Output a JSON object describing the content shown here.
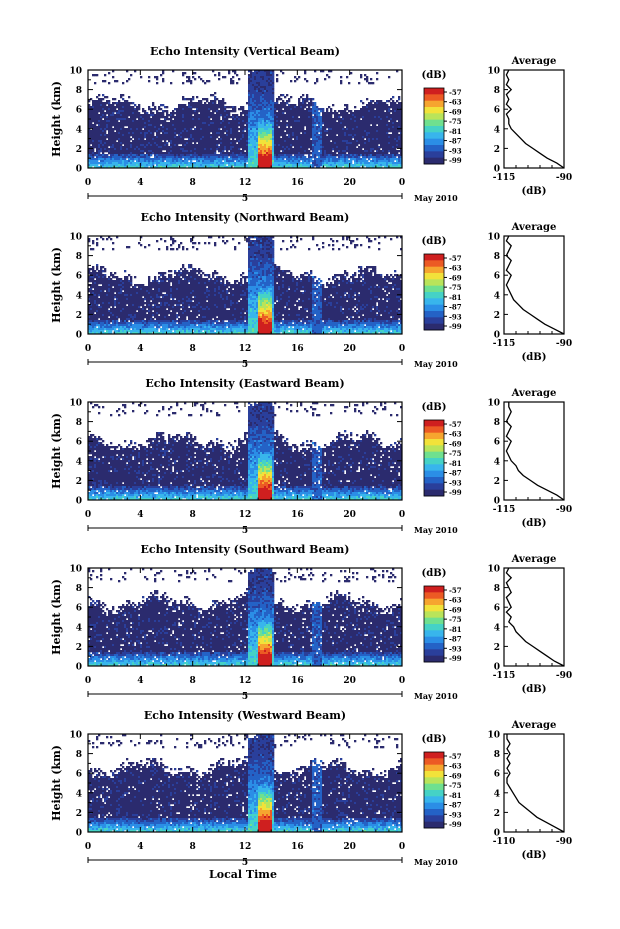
{
  "chart_data": {
    "type": "heatmap",
    "xlabel": "Local Time",
    "ylabel": "Height (km)",
    "x_ticks": [
      "0",
      "4",
      "8",
      "12",
      "16",
      "20",
      "0"
    ],
    "date_labels": [
      "5",
      "May 2010"
    ],
    "xlim": [
      0,
      24
    ],
    "ylim": [
      0,
      10
    ],
    "y_ticks": [
      "0",
      "2",
      "4",
      "6",
      "8",
      "10"
    ],
    "colorbar": {
      "unit_label": "(dB)",
      "tick_labels": [
        "-57",
        "-63",
        "-69",
        "-75",
        "-81",
        "-87",
        "-93",
        "-99"
      ],
      "range": [
        -101,
        -54
      ],
      "colors": [
        "#2b2b6e",
        "#2a3f9b",
        "#2462c6",
        "#2b8ee6",
        "#38b5ec",
        "#45d2c6",
        "#6fe08f",
        "#b9e45a",
        "#f2e23a",
        "#f6a52f",
        "#ec5a24",
        "#cf1f1f"
      ]
    },
    "rain_event": {
      "start_hour": 12.3,
      "end_hour": 14.2,
      "core_start_hour": 13.0,
      "core_end_hour": 14.0,
      "secondary_band_hour": 17.5
    },
    "panels": [
      {
        "title": "Echo Intensity (Vertical Beam)",
        "cloud_top_km": 6.5,
        "average": {
          "title": "Average",
          "xlabel": "(dB)",
          "xlim": [
            -115,
            -90
          ],
          "x_ticks": [
            "-115",
            "-90"
          ],
          "y_km": [
            0,
            0.5,
            1,
            1.5,
            2,
            2.5,
            3,
            3.5,
            4,
            4.5,
            5,
            5.5,
            6,
            6.5,
            7,
            7.5,
            8,
            8.5,
            9,
            9.5,
            10
          ],
          "values_db": [
            -90,
            -93,
            -97,
            -100,
            -103,
            -106,
            -108,
            -110,
            -112,
            -113,
            -113,
            -114,
            -112,
            -114,
            -113,
            -114,
            -112,
            -114,
            -113,
            -114,
            -113
          ]
        }
      },
      {
        "title": "Echo Intensity (Northward Beam)",
        "cloud_top_km": 6.0,
        "average": {
          "title": "Average",
          "xlabel": "(dB)",
          "xlim": [
            -115,
            -90
          ],
          "x_ticks": [
            "-115",
            "-90"
          ],
          "y_km": [
            0,
            0.5,
            1,
            1.5,
            2,
            2.5,
            3,
            3.5,
            4,
            4.5,
            5,
            5.5,
            6,
            6.5,
            7,
            7.5,
            8,
            8.5,
            9,
            9.5,
            10
          ],
          "values_db": [
            -90,
            -94,
            -98,
            -101,
            -104,
            -107,
            -109,
            -111,
            -112,
            -113,
            -114,
            -113,
            -112,
            -114,
            -113,
            -112,
            -114,
            -113,
            -112,
            -114,
            -113
          ]
        }
      },
      {
        "title": "Echo Intensity (Eastward Beam)",
        "cloud_top_km": 6.0,
        "average": {
          "title": "Average",
          "xlabel": "(dB)",
          "xlim": [
            -115,
            -90
          ],
          "x_ticks": [
            "-115",
            "-90"
          ],
          "y_km": [
            0,
            0.5,
            1,
            1.5,
            2,
            2.5,
            3,
            3.5,
            4,
            4.5,
            5,
            5.5,
            6,
            6.5,
            7,
            7.5,
            8,
            8.5,
            9,
            9.5,
            10
          ],
          "values_db": [
            -90,
            -93,
            -97,
            -101,
            -104,
            -107,
            -109,
            -110,
            -112,
            -113,
            -114,
            -113,
            -112,
            -114,
            -113,
            -112,
            -114,
            -113,
            -112,
            -113,
            -113
          ]
        }
      },
      {
        "title": "Echo Intensity (Southward Beam)",
        "cloud_top_km": 6.5,
        "average": {
          "title": "Average",
          "xlabel": "(dB)",
          "xlim": [
            -115,
            -90
          ],
          "x_ticks": [
            "-115",
            "-90"
          ],
          "y_km": [
            0,
            0.5,
            1,
            1.5,
            2,
            2.5,
            3,
            3.5,
            4,
            4.5,
            5,
            5.5,
            6,
            6.5,
            7,
            7.5,
            8,
            8.5,
            9,
            9.5,
            10
          ],
          "values_db": [
            -90,
            -94,
            -97,
            -100,
            -103,
            -106,
            -108,
            -110,
            -111,
            -113,
            -112,
            -114,
            -112,
            -113,
            -114,
            -112,
            -113,
            -114,
            -112,
            -114,
            -113
          ]
        }
      },
      {
        "title": "Echo Intensity (Westward Beam)",
        "cloud_top_km": 6.5,
        "average": {
          "title": "Average",
          "xlabel": "(dB)",
          "xlim": [
            -110,
            -90
          ],
          "x_ticks": [
            "-110",
            "-90"
          ],
          "y_km": [
            0,
            0.5,
            1,
            1.5,
            2,
            2.5,
            3,
            3.5,
            4,
            4.5,
            5,
            5.5,
            6,
            6.5,
            7,
            7.5,
            8,
            8.5,
            9,
            9.5,
            10
          ],
          "values_db": [
            -90,
            -93,
            -96,
            -99,
            -101,
            -103,
            -105,
            -106,
            -107,
            -108,
            -109,
            -109,
            -108,
            -109,
            -108,
            -109,
            -108,
            -109,
            -108,
            -109,
            -109
          ]
        }
      }
    ]
  }
}
